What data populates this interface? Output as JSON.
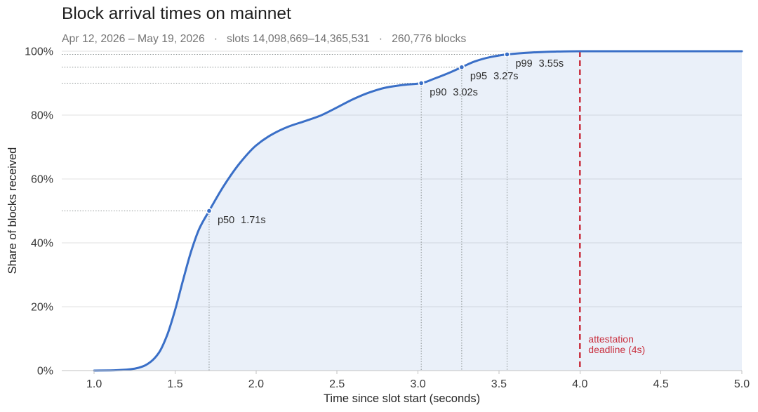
{
  "chart_data": {
    "type": "area",
    "title": "Block arrival times on mainnet",
    "subtitle": {
      "parts": [
        "Apr 12, 2026 – May 19, 2026",
        "slots 14,098,669–14,365,531",
        "260,776 blocks"
      ],
      "separator": "·"
    },
    "xlabel": "Time since slot start (seconds)",
    "ylabel": "Share of blocks received",
    "xlim": [
      0.8,
      5.0
    ],
    "ylim": [
      0,
      100
    ],
    "x_ticks": [
      1.0,
      1.5,
      2.0,
      2.5,
      3.0,
      3.5,
      4.0,
      4.5,
      5.0
    ],
    "x_tick_labels": [
      "1.0",
      "1.5",
      "2.0",
      "2.5",
      "3.0",
      "3.5",
      "4.0",
      "4.5",
      "5.0"
    ],
    "y_ticks": [
      0,
      20,
      40,
      60,
      80,
      100
    ],
    "y_tick_labels": [
      "0%",
      "20%",
      "40%",
      "60%",
      "80%",
      "100%"
    ],
    "grid": {
      "horizontal": true,
      "vertical": false
    },
    "legend": null,
    "series": [
      {
        "x": [
          1.0,
          1.1,
          1.2,
          1.25,
          1.3,
          1.35,
          1.4,
          1.45,
          1.5,
          1.55,
          1.6,
          1.65,
          1.71,
          1.8,
          1.9,
          2.0,
          2.1,
          2.2,
          2.3,
          2.4,
          2.5,
          2.6,
          2.7,
          2.8,
          2.9,
          3.02,
          3.1,
          3.2,
          3.27,
          3.35,
          3.45,
          3.55,
          3.7,
          3.85,
          4.0,
          4.5,
          5.0
        ],
        "y": [
          0,
          0.05,
          0.3,
          0.6,
          1.3,
          2.8,
          5.6,
          11,
          19,
          28.5,
          37.5,
          44.5,
          50,
          57.8,
          65,
          70.5,
          74,
          76.4,
          78.1,
          79.9,
          82.4,
          85,
          87.1,
          88.6,
          89.4,
          90,
          91.4,
          93.4,
          95,
          96.8,
          98.2,
          99,
          99.6,
          99.9,
          100,
          100,
          100
        ],
        "color": "#3a6fc7",
        "filled": true
      }
    ],
    "percentiles": [
      {
        "label": "p50",
        "value_label": "1.71s",
        "x": 1.71,
        "y": 50
      },
      {
        "label": "p90",
        "value_label": "3.02s",
        "x": 3.02,
        "y": 90
      },
      {
        "label": "p95",
        "value_label": "3.27s",
        "x": 3.27,
        "y": 95
      },
      {
        "label": "p99",
        "value_label": "3.55s",
        "x": 3.55,
        "y": 99
      }
    ],
    "deadline": {
      "x": 4.0,
      "label_lines": [
        "attestation",
        "deadline (4s)"
      ],
      "color": "#c9303f"
    }
  }
}
